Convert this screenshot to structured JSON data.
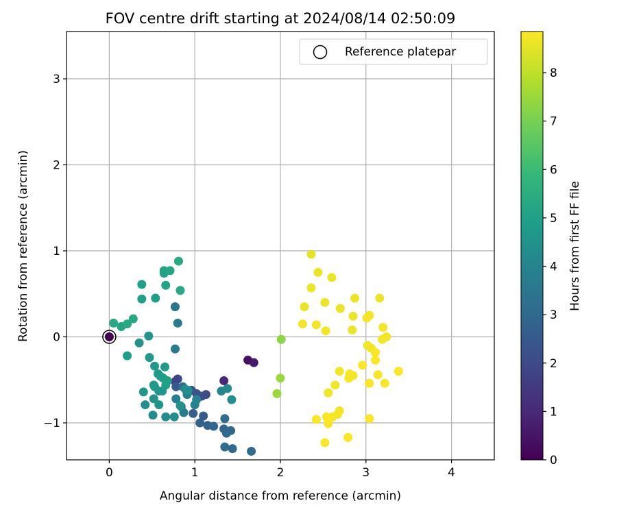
{
  "chart_data": {
    "type": "scatter",
    "title": "FOV centre drift starting at 2024/08/14 02:50:09",
    "xlabel": "Angular distance from reference (arcmin)",
    "ylabel": "Rotation from reference (arcmin)",
    "xlim": [
      -0.5,
      4.5
    ],
    "ylim": [
      -1.43,
      3.55
    ],
    "xticks": [
      0,
      1,
      2,
      3,
      4
    ],
    "xtick_labels": [
      "0",
      "1",
      "2",
      "3",
      "4"
    ],
    "yticks": [
      -1,
      0,
      1,
      2,
      3
    ],
    "ytick_labels": [
      "−1",
      "0",
      "1",
      "2",
      "3"
    ],
    "grid": true,
    "legend": {
      "placement": "top-right",
      "entries": [
        "Reference platepar"
      ]
    },
    "reference_point": {
      "x": 0,
      "y": 0
    },
    "colorbar": {
      "label": "Hours from first FF file",
      "range": [
        0,
        8.85
      ],
      "ticks": [
        0,
        1,
        2,
        3,
        4,
        5,
        6,
        7,
        8
      ],
      "tick_labels": [
        "0",
        "1",
        "2",
        "3",
        "4",
        "5",
        "6",
        "7",
        "8"
      ],
      "colormap": "viridis"
    },
    "colormap_stops": [
      "#440154",
      "#482878",
      "#3e4989",
      "#31688e",
      "#26828e",
      "#1f9e89",
      "#35b779",
      "#6ece58",
      "#b5de2b",
      "#fde725"
    ],
    "points": [
      [
        1.62,
        -0.27,
        0.4
      ],
      [
        1.69,
        -0.3,
        0.6
      ],
      [
        1.34,
        -0.51,
        1.0
      ],
      [
        0.8,
        -0.49,
        1.9
      ],
      [
        0.77,
        -0.52,
        1.8
      ],
      [
        1.13,
        -0.67,
        2.0
      ],
      [
        1.08,
        -0.69,
        2.1
      ],
      [
        0.96,
        -0.62,
        2.2
      ],
      [
        1.02,
        -0.66,
        2.3
      ],
      [
        0.78,
        -0.58,
        2.4
      ],
      [
        0.84,
        -0.81,
        2.5
      ],
      [
        0.98,
        -0.89,
        2.6
      ],
      [
        1.1,
        -0.92,
        2.5
      ],
      [
        1.06,
        -1.0,
        2.7
      ],
      [
        1.15,
        -1.03,
        2.8
      ],
      [
        1.22,
        -1.04,
        2.9
      ],
      [
        1.34,
        -1.07,
        2.9
      ],
      [
        1.42,
        -1.09,
        3.0
      ],
      [
        1.37,
        -1.12,
        3.0
      ],
      [
        1.35,
        -0.95,
        3.1
      ],
      [
        1.35,
        -1.28,
        3.1
      ],
      [
        1.44,
        -1.3,
        3.0
      ],
      [
        1.66,
        -1.33,
        3.1
      ],
      [
        0.86,
        -0.58,
        3.3
      ],
      [
        0.77,
        0.35,
        3.4
      ],
      [
        0.8,
        0.16,
        3.6
      ],
      [
        0.77,
        -0.14,
        3.6
      ],
      [
        0.78,
        -0.72,
        3.8
      ],
      [
        0.87,
        -0.88,
        3.8
      ],
      [
        0.91,
        -0.67,
        3.9
      ],
      [
        1.0,
        -0.79,
        3.9
      ],
      [
        1.02,
        -0.73,
        4.0
      ],
      [
        1.31,
        -0.63,
        4.1
      ],
      [
        1.38,
        -0.6,
        4.2
      ],
      [
        1.43,
        -0.73,
        4.4
      ],
      [
        0.89,
        -0.61,
        4.3
      ],
      [
        0.92,
        -0.62,
        4.4
      ],
      [
        0.83,
        -0.8,
        4.5
      ],
      [
        0.76,
        -0.93,
        4.4
      ],
      [
        0.66,
        -0.93,
        4.3
      ],
      [
        0.51,
        -0.91,
        4.3
      ],
      [
        0.42,
        -0.79,
        4.4
      ],
      [
        0.52,
        -0.72,
        4.5
      ],
      [
        0.62,
        -0.63,
        4.6
      ],
      [
        0.58,
        -0.63,
        4.6
      ],
      [
        0.53,
        -0.58,
        4.7
      ],
      [
        0.4,
        -0.64,
        4.7
      ],
      [
        0.52,
        -0.56,
        4.8
      ],
      [
        0.58,
        -0.79,
        4.6
      ],
      [
        0.6,
        -0.46,
        4.8
      ],
      [
        0.63,
        -0.48,
        4.9
      ],
      [
        0.66,
        -0.56,
        5.0
      ],
      [
        0.68,
        -0.51,
        5.0
      ],
      [
        0.57,
        -0.43,
        4.8
      ],
      [
        0.53,
        -0.34,
        4.7
      ],
      [
        0.47,
        -0.24,
        4.7
      ],
      [
        0.65,
        -0.35,
        4.8
      ],
      [
        0.35,
        -0.07,
        4.5
      ],
      [
        0.46,
        0.01,
        4.6
      ],
      [
        0.21,
        -0.22,
        4.9
      ],
      [
        0.54,
        0.45,
        4.9
      ],
      [
        0.38,
        0.44,
        5.0
      ],
      [
        0.38,
        0.61,
        5.0
      ],
      [
        0.66,
        0.6,
        5.1
      ],
      [
        0.64,
        0.74,
        5.1
      ],
      [
        0.64,
        0.77,
        5.1
      ],
      [
        0.71,
        0.77,
        5.2
      ],
      [
        0.81,
        0.88,
        5.3
      ],
      [
        0.83,
        0.54,
        5.3
      ],
      [
        0.05,
        0.16,
        5.3
      ],
      [
        0.14,
        0.12,
        5.2
      ],
      [
        0.21,
        0.15,
        5.3
      ],
      [
        0.28,
        0.21,
        5.3
      ],
      [
        2.01,
        -0.03,
        7.3
      ],
      [
        2.0,
        -0.48,
        7.5
      ],
      [
        1.96,
        -0.66,
        7.5
      ],
      [
        2.36,
        0.96,
        8.5
      ],
      [
        2.44,
        0.75,
        8.6
      ],
      [
        2.36,
        0.57,
        8.6
      ],
      [
        2.6,
        0.69,
        8.6
      ],
      [
        2.28,
        0.35,
        8.6
      ],
      [
        2.52,
        0.4,
        8.6
      ],
      [
        2.26,
        0.15,
        8.7
      ],
      [
        2.42,
        0.14,
        8.7
      ],
      [
        2.53,
        0.07,
        8.7
      ],
      [
        2.7,
        0.33,
        8.6
      ],
      [
        2.87,
        0.45,
        8.6
      ],
      [
        2.85,
        0.24,
        8.6
      ],
      [
        2.84,
        0.08,
        8.6
      ],
      [
        3.16,
        0.45,
        8.6
      ],
      [
        3.04,
        0.25,
        8.7
      ],
      [
        3.01,
        0.22,
        8.7
      ],
      [
        3.2,
        0.11,
        8.7
      ],
      [
        3.24,
        0.0,
        8.7
      ],
      [
        3.19,
        -0.03,
        8.7
      ],
      [
        3.02,
        -0.1,
        8.7
      ],
      [
        3.06,
        -0.13,
        8.7
      ],
      [
        3.11,
        -0.18,
        8.8
      ],
      [
        3.11,
        -0.27,
        8.8
      ],
      [
        2.96,
        -0.33,
        8.8
      ],
      [
        2.69,
        -0.4,
        8.7
      ],
      [
        2.81,
        -0.43,
        8.7
      ],
      [
        2.85,
        -0.45,
        8.7
      ],
      [
        2.8,
        -0.48,
        8.7
      ],
      [
        3.14,
        -0.44,
        8.8
      ],
      [
        3.38,
        -0.4,
        8.8
      ],
      [
        3.22,
        -0.54,
        8.8
      ],
      [
        3.04,
        -0.54,
        8.8
      ],
      [
        2.64,
        -0.56,
        8.7
      ],
      [
        2.56,
        -0.65,
        8.7
      ],
      [
        2.69,
        -0.86,
        8.7
      ],
      [
        2.67,
        -0.9,
        8.7
      ],
      [
        2.61,
        -0.93,
        8.7
      ],
      [
        2.54,
        -0.93,
        8.8
      ],
      [
        2.56,
        -0.96,
        8.8
      ],
      [
        2.42,
        -0.96,
        8.8
      ],
      [
        2.56,
        -1.01,
        8.8
      ],
      [
        3.04,
        -0.95,
        8.8
      ],
      [
        2.79,
        -1.17,
        8.8
      ],
      [
        2.52,
        -1.23,
        8.8
      ],
      [
        0.0,
        0.0,
        0.0
      ]
    ]
  }
}
